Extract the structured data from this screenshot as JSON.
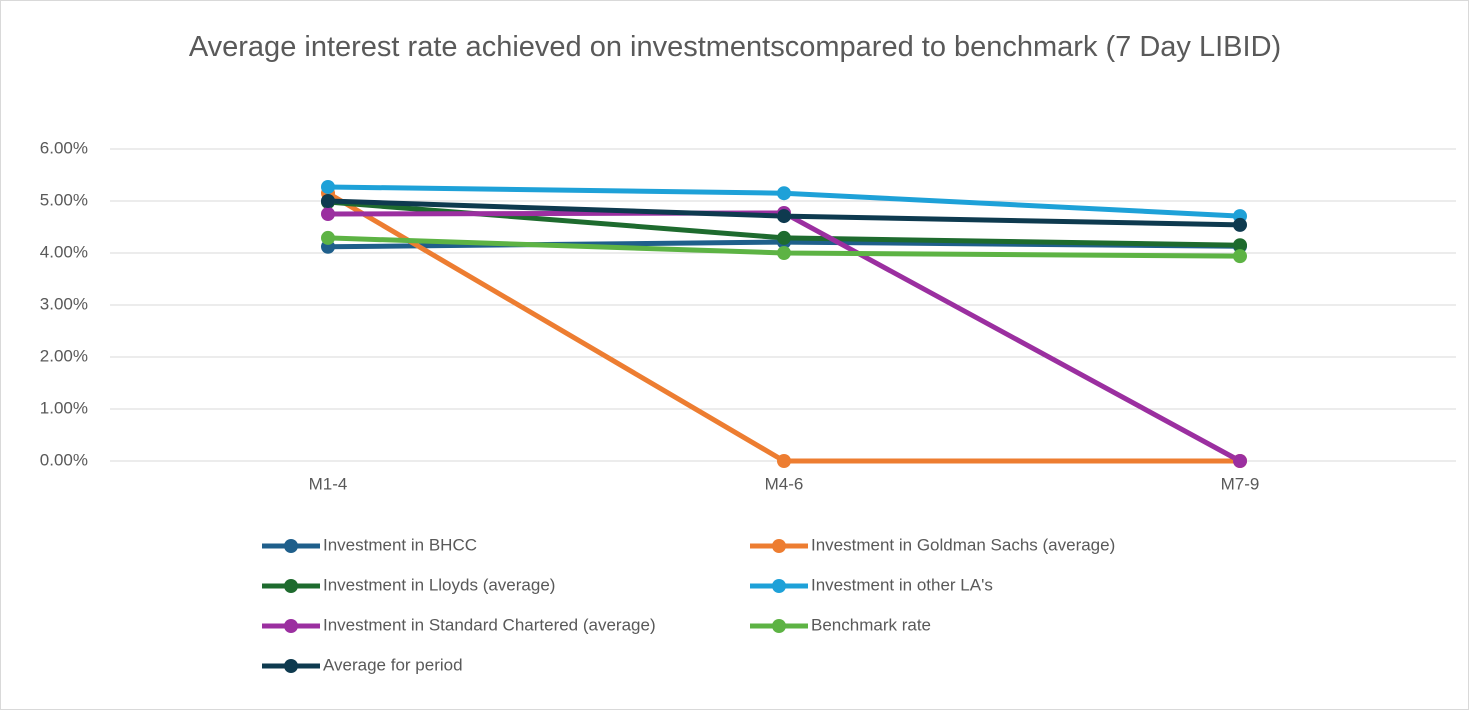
{
  "chart_data": {
    "type": "line",
    "title": "Average interest rate achieved on investmentscompared to benchmark (7 Day LIBID)",
    "categories": [
      "M1-4",
      "M4-6",
      "M7-9"
    ],
    "series": [
      {
        "name": "Investment in BHCC",
        "color": "#1f5f8b",
        "values": [
          4.12,
          4.21,
          4.13
        ]
      },
      {
        "name": "Investment in Goldman Sachs (average)",
        "color": "#ed7d31",
        "values": [
          5.15,
          0,
          0
        ]
      },
      {
        "name": "Investment in Lloyds (average)",
        "color": "#1e6b2e",
        "values": [
          4.98,
          4.29,
          4.15
        ]
      },
      {
        "name": "Investment in other LA's",
        "color": "#1ea1d8",
        "values": [
          5.27,
          5.15,
          4.71
        ]
      },
      {
        "name": "Investment in Standard Chartered (average)",
        "color": "#9b2fa0",
        "values": [
          4.75,
          4.77,
          0
        ]
      },
      {
        "name": "Benchmark rate",
        "color": "#5db344",
        "values": [
          4.29,
          4.0,
          3.94
        ]
      },
      {
        "name": "Average for period",
        "color": "#0e3a4f",
        "values": [
          5.0,
          4.71,
          4.54
        ]
      }
    ],
    "ylim": [
      0,
      6
    ],
    "yticks": [
      {
        "value": 0,
        "label": "0.00%"
      },
      {
        "value": 1,
        "label": "1.00%"
      },
      {
        "value": 2,
        "label": "2.00%"
      },
      {
        "value": 3,
        "label": "3.00%"
      },
      {
        "value": 4,
        "label": "4.00%"
      },
      {
        "value": 5,
        "label": "5.00%"
      },
      {
        "value": 6,
        "label": "6.00%"
      }
    ],
    "grid": true,
    "legend": "bottom"
  }
}
